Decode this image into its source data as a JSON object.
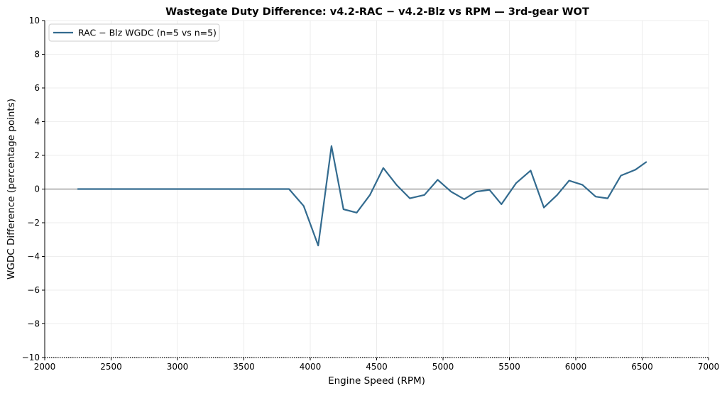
{
  "chart_data": {
    "type": "line",
    "title": "Wastegate Duty Difference: v4.2-RAC − v4.2-Blz vs RPM — 3rd-gear WOT",
    "xlabel": "Engine Speed (RPM)",
    "ylabel": "WGDC Difference (percentage points)",
    "xlim": [
      2000,
      7000
    ],
    "ylim": [
      -10,
      10
    ],
    "xticks": [
      2000,
      2500,
      3000,
      3500,
      4000,
      4500,
      5000,
      5500,
      6000,
      6500,
      7000
    ],
    "yticks": [
      -10,
      -8,
      -6,
      -4,
      -2,
      0,
      2,
      4,
      6,
      8,
      10
    ],
    "ytick_labels": [
      "−10",
      "−8",
      "−6",
      "−4",
      "−2",
      "0",
      "2",
      "4",
      "6",
      "8",
      "10"
    ],
    "xtick_labels": [
      "2000",
      "2500",
      "3000",
      "3500",
      "4000",
      "4500",
      "5000",
      "5500",
      "6000",
      "6500",
      "7000"
    ],
    "grid": true,
    "reference_line_y": 0,
    "legend_position": "top-left",
    "series": [
      {
        "name": "RAC − Blz WGDC (n=5 vs n=5)",
        "color": "#336b8f",
        "x": [
          2250,
          2500,
          3000,
          3500,
          3840,
          3950,
          4060,
          4160,
          4250,
          4350,
          4450,
          4550,
          4650,
          4750,
          4860,
          4960,
          5060,
          5160,
          5250,
          5350,
          5440,
          5550,
          5660,
          5760,
          5860,
          5950,
          6050,
          6150,
          6240,
          6340,
          6450,
          6530
        ],
        "y": [
          0,
          0,
          0,
          0,
          0,
          -1.0,
          -3.35,
          2.55,
          -1.2,
          -1.4,
          -0.35,
          1.25,
          0.25,
          -0.55,
          -0.35,
          0.55,
          -0.15,
          -0.6,
          -0.15,
          -0.05,
          -0.9,
          0.35,
          1.1,
          -1.1,
          -0.35,
          0.5,
          0.25,
          -0.45,
          -0.55,
          0.8,
          1.15,
          1.6
        ]
      }
    ]
  },
  "colors": {
    "line": "#336b8f",
    "reference_line": "#888888",
    "grid": "#e8e8e8"
  }
}
